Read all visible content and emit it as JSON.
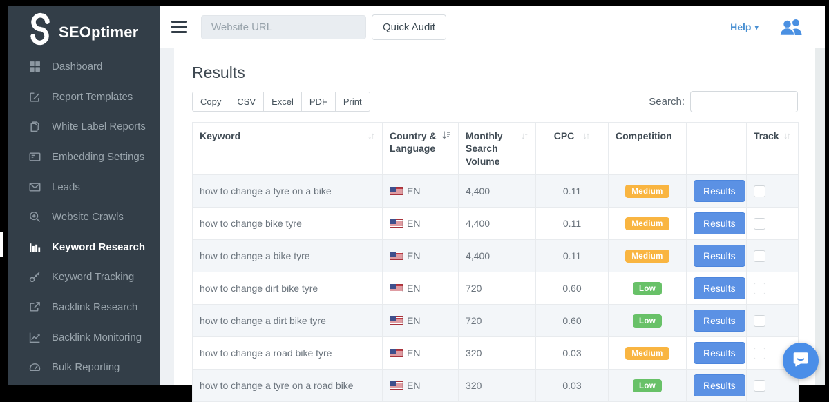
{
  "sidebar": {
    "logo_text": "SEOptimer",
    "items": [
      {
        "label": "Dashboard",
        "icon": "dashboard-icon",
        "active": false
      },
      {
        "label": "Report Templates",
        "icon": "report-templates-icon",
        "active": false
      },
      {
        "label": "White Label Reports",
        "icon": "white-label-reports-icon",
        "active": false
      },
      {
        "label": "Embedding Settings",
        "icon": "embedding-settings-icon",
        "active": false
      },
      {
        "label": "Leads",
        "icon": "leads-icon",
        "active": false
      },
      {
        "label": "Website Crawls",
        "icon": "website-crawls-icon",
        "active": false
      },
      {
        "label": "Keyword Research",
        "icon": "keyword-research-icon",
        "active": true
      },
      {
        "label": "Keyword Tracking",
        "icon": "keyword-tracking-icon",
        "active": false
      },
      {
        "label": "Backlink Research",
        "icon": "backlink-research-icon",
        "active": false
      },
      {
        "label": "Backlink Monitoring",
        "icon": "backlink-monitoring-icon",
        "active": false
      },
      {
        "label": "Bulk Reporting",
        "icon": "bulk-reporting-icon",
        "active": false
      }
    ]
  },
  "topbar": {
    "url_placeholder": "Website URL",
    "quick_audit_label": "Quick Audit",
    "help_label": "Help"
  },
  "results": {
    "title": "Results",
    "export_buttons": [
      "Copy",
      "CSV",
      "Excel",
      "PDF",
      "Print"
    ],
    "search_label": "Search:",
    "search_value": ""
  },
  "table": {
    "columns": [
      {
        "label": "Keyword",
        "sort": "both"
      },
      {
        "label": "Country & Language",
        "sort": "active"
      },
      {
        "label": "Monthly Search Volume",
        "sort": "both"
      },
      {
        "label": "CPC",
        "sort": "both",
        "align": "center"
      },
      {
        "label": "Competition",
        "sort": "none"
      },
      {
        "label": "",
        "sort": "none"
      },
      {
        "label": "Track",
        "sort": "both"
      }
    ],
    "rows": [
      {
        "keyword": "how to change a tyre on a bike",
        "flag": "us-flag-icon",
        "language": "EN",
        "volume": "4,400",
        "cpc": "0.11",
        "competition": "Medium",
        "action_label": "Results",
        "tracked": false
      },
      {
        "keyword": "how to change bike tyre",
        "flag": "us-flag-icon",
        "language": "EN",
        "volume": "4,400",
        "cpc": "0.11",
        "competition": "Medium",
        "action_label": "Results",
        "tracked": false
      },
      {
        "keyword": "how to change a bike tyre",
        "flag": "us-flag-icon",
        "language": "EN",
        "volume": "4,400",
        "cpc": "0.11",
        "competition": "Medium",
        "action_label": "Results",
        "tracked": false
      },
      {
        "keyword": "how to change dirt bike tyre",
        "flag": "us-flag-icon",
        "language": "EN",
        "volume": "720",
        "cpc": "0.60",
        "competition": "Low",
        "action_label": "Results",
        "tracked": false
      },
      {
        "keyword": "how to change a dirt bike tyre",
        "flag": "us-flag-icon",
        "language": "EN",
        "volume": "720",
        "cpc": "0.60",
        "competition": "Low",
        "action_label": "Results",
        "tracked": false
      },
      {
        "keyword": "how to change a road bike tyre",
        "flag": "us-flag-icon",
        "language": "EN",
        "volume": "320",
        "cpc": "0.03",
        "competition": "Medium",
        "action_label": "Results",
        "tracked": false
      },
      {
        "keyword": "how to change a tyre on a road bike",
        "flag": "us-flag-icon",
        "language": "EN",
        "volume": "320",
        "cpc": "0.03",
        "competition": "Low",
        "action_label": "Results",
        "tracked": false
      }
    ]
  },
  "colors": {
    "sidebar_bg": "#333e48",
    "accent_blue": "#5b91e4",
    "help_blue": "#4a90d2",
    "badge_medium": "#f9b541",
    "badge_low": "#68c168"
  }
}
